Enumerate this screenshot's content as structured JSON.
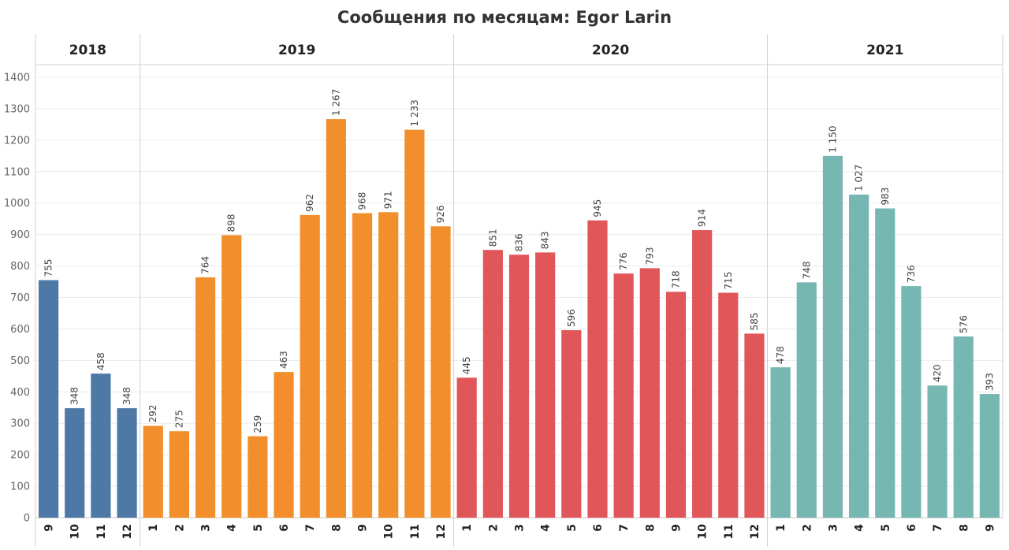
{
  "chart_data": {
    "type": "bar",
    "title": "Сообщения по месяцам: Egor Larin",
    "ylim": [
      0,
      1450
    ],
    "yticks": [
      0,
      100,
      200,
      300,
      400,
      500,
      600,
      700,
      800,
      900,
      1000,
      1100,
      1200,
      1300,
      1400
    ],
    "grid": true,
    "groups": [
      {
        "year": "2018",
        "color": "#4e79a7",
        "months": [
          "9",
          "10",
          "11",
          "12"
        ],
        "values": [
          755,
          348,
          458,
          348
        ],
        "labels": [
          "755",
          "348",
          "458",
          "348"
        ]
      },
      {
        "year": "2019",
        "color": "#f28e2b",
        "months": [
          "1",
          "2",
          "3",
          "4",
          "5",
          "6",
          "7",
          "8",
          "9",
          "10",
          "11",
          "12"
        ],
        "values": [
          292,
          275,
          764,
          898,
          259,
          463,
          962,
          1267,
          968,
          971,
          1233,
          926
        ],
        "labels": [
          "292",
          "275",
          "764",
          "898",
          "259",
          "463",
          "962",
          "1 267",
          "968",
          "971",
          "1 233",
          "926"
        ]
      },
      {
        "year": "2020",
        "color": "#e15759",
        "months": [
          "1",
          "2",
          "3",
          "4",
          "5",
          "6",
          "7",
          "8",
          "9",
          "10",
          "11",
          "12"
        ],
        "values": [
          445,
          851,
          836,
          843,
          596,
          945,
          776,
          793,
          718,
          914,
          715,
          585
        ],
        "labels": [
          "445",
          "851",
          "836",
          "843",
          "596",
          "945",
          "776",
          "793",
          "718",
          "914",
          "715",
          "585"
        ]
      },
      {
        "year": "2021",
        "color": "#76b7b2",
        "months": [
          "1",
          "2",
          "3",
          "4",
          "5",
          "6",
          "7",
          "8",
          "9"
        ],
        "values": [
          478,
          748,
          1150,
          1027,
          983,
          736,
          420,
          576,
          393
        ],
        "labels": [
          "478",
          "748",
          "1 150",
          "1 027",
          "983",
          "736",
          "420",
          "576",
          "393"
        ]
      }
    ]
  }
}
